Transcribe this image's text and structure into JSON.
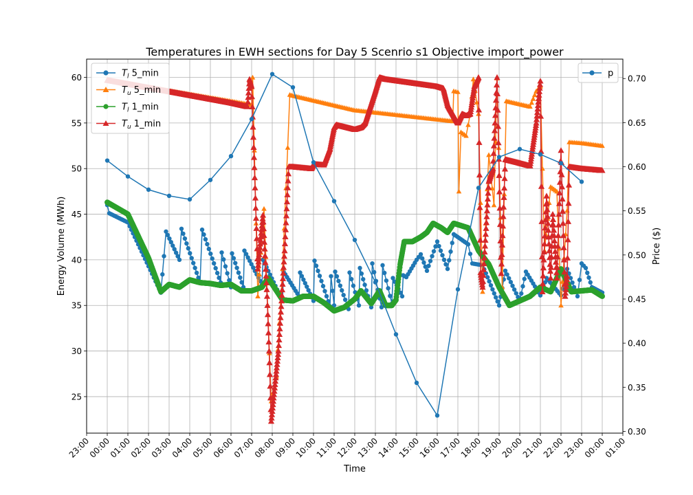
{
  "chart_data": {
    "type": "line",
    "title": "Temperatures in EWH sections for Day 5 Scenrio s1 Objective import_power",
    "xlabel": "Time",
    "ylabel": "Energy Volume (MWh)",
    "ylabel_right": "Price ($)",
    "xlim": [
      -1,
      25
    ],
    "ylim": [
      21,
      62
    ],
    "ylim_right": [
      0.298,
      0.722
    ],
    "x_ticks": [
      -1,
      0,
      1,
      2,
      3,
      4,
      5,
      6,
      7,
      8,
      9,
      10,
      11,
      12,
      13,
      14,
      15,
      16,
      17,
      18,
      19,
      20,
      21,
      22,
      23,
      24,
      25
    ],
    "x_tick_labels": [
      "23:00",
      "00:00",
      "01:00",
      "02:00",
      "03:00",
      "04:00",
      "05:00",
      "06:00",
      "07:00",
      "08:00",
      "09:00",
      "10:00",
      "11:00",
      "12:00",
      "13:00",
      "14:00",
      "15:00",
      "16:00",
      "17:00",
      "18:00",
      "19:00",
      "20:00",
      "21:00",
      "22:00",
      "23:00",
      "00:00",
      "01:00"
    ],
    "y_ticks": [
      25,
      30,
      35,
      40,
      45,
      50,
      55,
      60
    ],
    "y_ticks_right": [
      0.3,
      0.35,
      0.4,
      0.45,
      0.5,
      0.55,
      0.6,
      0.65,
      0.7
    ],
    "grid": true,
    "legend_left": "top-left",
    "legend_right": "top-right",
    "colors": {
      "blue": "#1f77b4",
      "orange": "#ff7f0e",
      "green": "#2ca02c",
      "red": "#d62728"
    },
    "series": [
      {
        "name": "T_l 5_min",
        "legend_label": "5_min",
        "legend_sub": "l",
        "color": "#1f77b4",
        "marker": "circle",
        "axis": "left",
        "interval_min": 5,
        "points": [
          [
            0,
            46.0
          ],
          [
            0.1,
            45.1
          ],
          [
            1.0,
            44.1
          ],
          [
            2.0,
            39.3
          ],
          [
            2.6,
            36.4
          ],
          [
            2.75,
            40.4
          ],
          [
            2.85,
            43.1
          ],
          [
            3.5,
            40.0
          ],
          [
            3.6,
            43.4
          ],
          [
            4.5,
            37.5
          ],
          [
            4.6,
            43.3
          ],
          [
            5.5,
            37.5
          ],
          [
            5.55,
            40.8
          ],
          [
            6.0,
            37.0
          ],
          [
            6.05,
            40.7
          ],
          [
            6.6,
            37.0
          ],
          [
            6.65,
            41.0
          ],
          [
            7.5,
            37.3
          ],
          [
            7.55,
            40.0
          ],
          [
            8.5,
            35.5
          ],
          [
            8.55,
            38.7
          ],
          [
            9.3,
            36.0
          ],
          [
            9.35,
            38.6
          ],
          [
            10.0,
            35.5
          ],
          [
            10.05,
            39.9
          ],
          [
            10.8,
            34.9
          ],
          [
            10.85,
            38.2
          ],
          [
            11.0,
            35.0
          ],
          [
            11.05,
            38.7
          ],
          [
            11.7,
            34.6
          ],
          [
            11.75,
            38.6
          ],
          [
            12.2,
            35.0
          ],
          [
            12.25,
            39.1
          ],
          [
            12.8,
            34.8
          ],
          [
            12.85,
            39.6
          ],
          [
            13.3,
            34.8
          ],
          [
            13.35,
            39.4
          ],
          [
            13.8,
            35.2
          ],
          [
            13.85,
            38.0
          ],
          [
            14.3,
            36.0
          ],
          [
            14.35,
            38.3
          ],
          [
            14.5,
            38.1
          ],
          [
            15.0,
            40.0
          ],
          [
            15.2,
            40.6
          ],
          [
            15.5,
            38.8
          ],
          [
            16.0,
            42.0
          ],
          [
            16.5,
            39.0
          ],
          [
            16.8,
            42.8
          ],
          [
            17.5,
            41.7
          ],
          [
            17.7,
            39.6
          ],
          [
            18.2,
            39.4
          ],
          [
            19.0,
            35.0
          ],
          [
            19.3,
            38.8
          ],
          [
            20.0,
            35.5
          ],
          [
            20.3,
            38.7
          ],
          [
            21.0,
            36.1
          ],
          [
            21.3,
            38.0
          ],
          [
            22.0,
            36.1
          ],
          [
            22.3,
            39.0
          ],
          [
            22.8,
            36.0
          ],
          [
            23.0,
            39.6
          ],
          [
            23.2,
            39.1
          ],
          [
            23.5,
            37.0
          ],
          [
            24.0,
            36.4
          ]
        ]
      },
      {
        "name": "T_u 5_min",
        "legend_label": "5_min",
        "legend_sub": "u",
        "color": "#ff7f0e",
        "marker": "triangle",
        "axis": "left",
        "interval_min": 5,
        "points": [
          [
            0,
            59.7
          ],
          [
            6.0,
            57.4
          ],
          [
            7.0,
            57.0
          ],
          [
            7.05,
            60.0
          ],
          [
            7.3,
            36.0
          ],
          [
            7.6,
            45.6
          ],
          [
            7.95,
            24.5
          ],
          [
            8.2,
            27.2
          ],
          [
            8.5,
            39.0
          ],
          [
            8.75,
            52.3
          ],
          [
            8.85,
            58.1
          ],
          [
            9.0,
            58.0
          ],
          [
            12.0,
            56.4
          ],
          [
            16.75,
            55.2
          ],
          [
            16.8,
            58.5
          ],
          [
            17.0,
            58.4
          ],
          [
            17.05,
            47.5
          ],
          [
            17.15,
            54.0
          ],
          [
            17.4,
            53.6
          ],
          [
            17.6,
            56.0
          ],
          [
            17.75,
            59.8
          ],
          [
            18.0,
            56.0
          ],
          [
            18.2,
            36.5
          ],
          [
            18.5,
            51.5
          ],
          [
            18.75,
            46.0
          ],
          [
            18.9,
            59.9
          ],
          [
            19.15,
            37.0
          ],
          [
            19.35,
            57.4
          ],
          [
            20.5,
            56.8
          ],
          [
            20.8,
            58.5
          ],
          [
            21.0,
            59.0
          ],
          [
            21.2,
            41.0
          ],
          [
            21.5,
            48.0
          ],
          [
            21.8,
            47.5
          ],
          [
            22.0,
            35.0
          ],
          [
            22.3,
            45.4
          ],
          [
            22.4,
            52.9
          ],
          [
            23.0,
            52.8
          ],
          [
            24.0,
            52.5
          ]
        ]
      },
      {
        "name": "T_l 1_min",
        "legend_label": "1_min",
        "legend_sub": "l",
        "color": "#2ca02c",
        "marker": "circle",
        "axis": "left",
        "interval_min": 1,
        "points": [
          [
            0,
            46.3
          ],
          [
            1.0,
            45.0
          ],
          [
            2.0,
            40.2
          ],
          [
            2.6,
            36.5
          ],
          [
            3.0,
            37.3
          ],
          [
            3.5,
            37.0
          ],
          [
            4.0,
            37.8
          ],
          [
            4.5,
            37.5
          ],
          [
            5.0,
            37.4
          ],
          [
            5.5,
            37.2
          ],
          [
            6.0,
            37.3
          ],
          [
            6.5,
            36.6
          ],
          [
            7.0,
            36.6
          ],
          [
            7.5,
            37.0
          ],
          [
            7.8,
            38.0
          ],
          [
            8.5,
            35.6
          ],
          [
            9.0,
            35.5
          ],
          [
            9.5,
            36.0
          ],
          [
            10.0,
            36.0
          ],
          [
            10.5,
            35.3
          ],
          [
            11.0,
            34.4
          ],
          [
            11.5,
            34.8
          ],
          [
            12.0,
            35.7
          ],
          [
            12.3,
            36.6
          ],
          [
            12.8,
            35.2
          ],
          [
            13.2,
            36.6
          ],
          [
            13.5,
            35.0
          ],
          [
            13.8,
            35.0
          ],
          [
            14.0,
            35.6
          ],
          [
            14.2,
            39.5
          ],
          [
            14.4,
            42.0
          ],
          [
            14.8,
            42.0
          ],
          [
            15.2,
            42.5
          ],
          [
            15.5,
            43.0
          ],
          [
            15.8,
            44.0
          ],
          [
            16.2,
            43.5
          ],
          [
            16.5,
            43.0
          ],
          [
            16.8,
            44.0
          ],
          [
            17.5,
            43.5
          ],
          [
            17.8,
            42.0
          ],
          [
            18.0,
            41.0
          ],
          [
            18.5,
            39.5
          ],
          [
            19.0,
            37.0
          ],
          [
            19.5,
            35.0
          ],
          [
            20.0,
            35.5
          ],
          [
            20.5,
            36.0
          ],
          [
            21.0,
            37.0
          ],
          [
            21.5,
            36.5
          ],
          [
            22.0,
            39.0
          ],
          [
            22.3,
            37.5
          ],
          [
            22.5,
            36.5
          ],
          [
            23.0,
            36.6
          ],
          [
            23.5,
            36.7
          ],
          [
            24.0,
            36.0
          ]
        ]
      },
      {
        "name": "T_u 1_min",
        "legend_label": "1_min",
        "legend_sub": "u",
        "color": "#d62728",
        "marker": "triangle",
        "axis": "left",
        "interval_min": 1,
        "points": [
          [
            0,
            59.7
          ],
          [
            6.0,
            57.2
          ],
          [
            6.8,
            56.8
          ],
          [
            6.9,
            59.8
          ],
          [
            7.0,
            59.0
          ],
          [
            7.3,
            39.0
          ],
          [
            7.55,
            44.9
          ],
          [
            7.75,
            36.0
          ],
          [
            7.85,
            30.0
          ],
          [
            7.95,
            22.3
          ],
          [
            8.3,
            30.0
          ],
          [
            8.6,
            41.0
          ],
          [
            8.8,
            50.2
          ],
          [
            9.0,
            50.2
          ],
          [
            9.9,
            50.0
          ],
          [
            10.0,
            50.5
          ],
          [
            10.5,
            50.4
          ],
          [
            10.8,
            52.2
          ],
          [
            11.0,
            54.5
          ],
          [
            11.1,
            54.8
          ],
          [
            12.0,
            54.3
          ],
          [
            12.3,
            54.5
          ],
          [
            12.5,
            55.0
          ],
          [
            13.0,
            58.5
          ],
          [
            13.2,
            60.0
          ],
          [
            13.5,
            59.8
          ],
          [
            16.0,
            59.0
          ],
          [
            16.3,
            58.8
          ],
          [
            16.5,
            57.0
          ],
          [
            17.0,
            55.0
          ],
          [
            17.2,
            56.0
          ],
          [
            17.4,
            55.8
          ],
          [
            17.6,
            56.0
          ],
          [
            17.8,
            59.0
          ],
          [
            18.0,
            60.0
          ],
          [
            18.1,
            38.6
          ],
          [
            18.2,
            37.0
          ],
          [
            18.5,
            48.6
          ],
          [
            18.7,
            50.0
          ],
          [
            18.8,
            55.0
          ],
          [
            18.9,
            60.0
          ],
          [
            19.1,
            38.5
          ],
          [
            19.3,
            51.0
          ],
          [
            20.0,
            50.6
          ],
          [
            20.5,
            50.3
          ],
          [
            20.8,
            55.0
          ],
          [
            21.0,
            59.6
          ],
          [
            21.1,
            36.5
          ],
          [
            21.3,
            47.0
          ],
          [
            21.5,
            38.0
          ],
          [
            21.6,
            45.0
          ],
          [
            21.8,
            38.0
          ],
          [
            22.0,
            52.0
          ],
          [
            22.2,
            36.0
          ],
          [
            22.3,
            38.2
          ],
          [
            22.4,
            50.2
          ],
          [
            23.0,
            50.0
          ],
          [
            24.0,
            49.8
          ]
        ]
      },
      {
        "name": "p",
        "legend_label": "p",
        "color": "#1f77b4",
        "marker": "circle",
        "axis": "right",
        "points": [
          [
            0,
            0.607
          ],
          [
            1,
            0.589
          ],
          [
            2,
            0.574
          ],
          [
            3,
            0.567
          ],
          [
            4,
            0.563
          ],
          [
            5,
            0.585
          ],
          [
            6,
            0.612
          ],
          [
            7,
            0.654
          ],
          [
            8,
            0.705
          ],
          [
            9,
            0.69
          ],
          [
            10,
            0.605
          ],
          [
            11,
            0.561
          ],
          [
            12,
            0.517
          ],
          [
            13,
            0.469
          ],
          [
            14,
            0.41
          ],
          [
            15,
            0.355
          ],
          [
            16,
            0.318
          ],
          [
            17,
            0.461
          ],
          [
            18,
            0.576
          ],
          [
            19,
            0.611
          ],
          [
            20,
            0.62
          ],
          [
            21,
            0.614
          ],
          [
            22,
            0.604
          ],
          [
            23,
            0.583
          ]
        ]
      }
    ]
  }
}
